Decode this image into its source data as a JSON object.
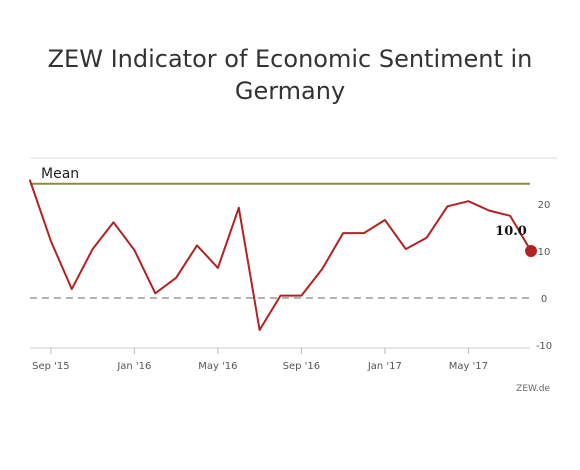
{
  "chart_data": {
    "type": "line",
    "title": "ZEW Indicator of Economic Sentiment in Germany",
    "title_lines": [
      "ZEW Indicator of Economic Sentiment in",
      "Germany"
    ],
    "x": [
      "2015-08",
      "2015-09",
      "2015-10",
      "2015-11",
      "2015-12",
      "2016-01",
      "2016-02",
      "2016-03",
      "2016-04",
      "2016-05",
      "2016-06",
      "2016-07",
      "2016-08",
      "2016-09",
      "2016-10",
      "2016-11",
      "2016-12",
      "2017-01",
      "2017-02",
      "2017-03",
      "2017-04",
      "2017-05",
      "2017-06",
      "2017-07",
      "2017-08"
    ],
    "series": [
      {
        "color": "#b22222",
        "values": [
          25.0,
          12.1,
          1.9,
          10.4,
          16.1,
          10.2,
          1.0,
          4.3,
          11.2,
          6.4,
          19.2,
          -6.8,
          0.5,
          0.5,
          6.2,
          13.8,
          13.8,
          16.6,
          10.4,
          12.8,
          19.5,
          20.6,
          18.6,
          17.5,
          10.0
        ]
      }
    ],
    "xtick_labels": [
      "Sep '15",
      "Jan '16",
      "May '16",
      "Sep '16",
      "Jan '17",
      "May '17"
    ],
    "xtick_positions": [
      "2015-09",
      "2016-01",
      "2016-05",
      "2016-09",
      "2017-01",
      "2017-05"
    ],
    "yticks": [
      20,
      10,
      0,
      -10
    ],
    "ylim": [
      -11,
      30
    ],
    "mean": {
      "label": "Mean",
      "value": 24.3,
      "color": "#8b8b3a"
    },
    "zero_line": {
      "value": 0,
      "style": "dashed",
      "color": "#999999"
    },
    "last_value_label": "10.0",
    "marker_color": "#b22222",
    "source": "ZEW.de",
    "grid": false
  }
}
